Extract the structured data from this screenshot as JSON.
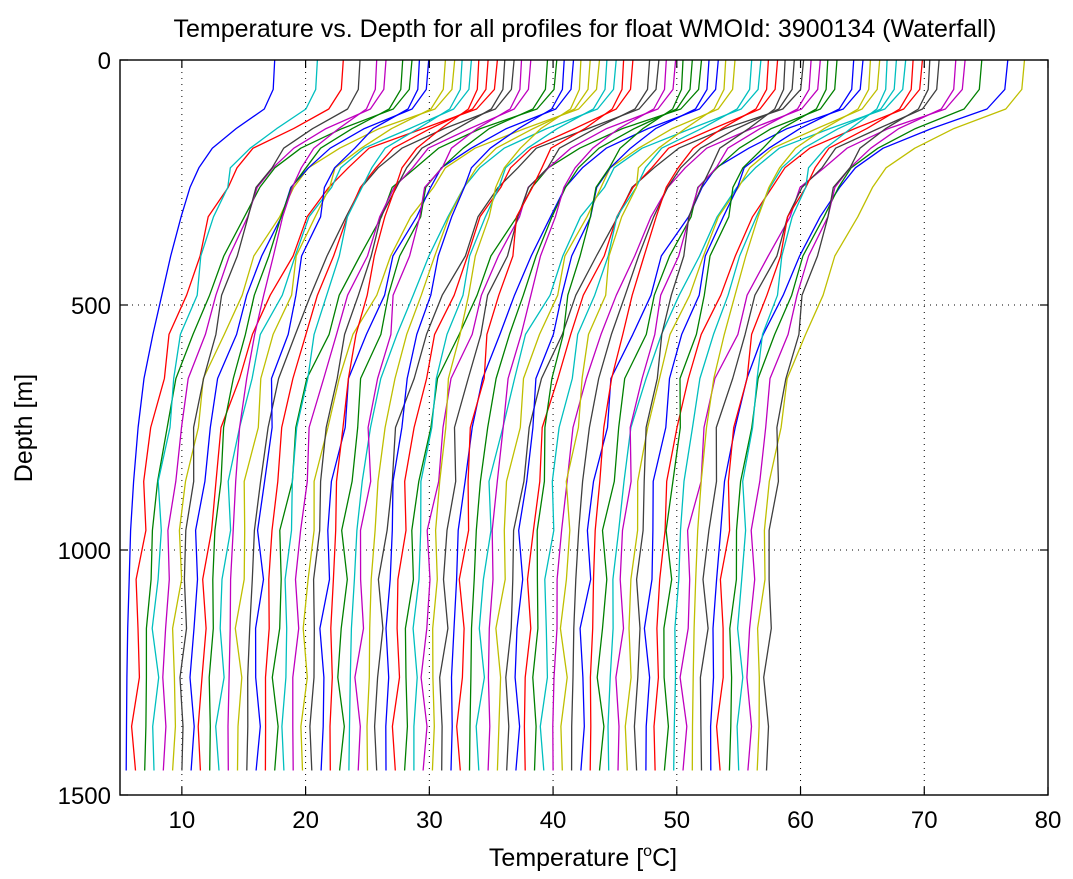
{
  "chart_data": {
    "type": "line",
    "title": "Temperature vs. Depth for all profiles for float WMOId: 3900134 (Waterfall)",
    "xlabel_prefix": "Temperature [",
    "xlabel_sup": "o",
    "xlabel_suffix": "C]",
    "ylabel": "Depth [m]",
    "xlim": [
      5,
      80
    ],
    "ylim": [
      0,
      1500
    ],
    "y_reversed": true,
    "x_ticks": [
      10,
      20,
      30,
      40,
      50,
      60,
      70,
      80
    ],
    "y_ticks": [
      0,
      500,
      1000,
      1500
    ],
    "grid": true,
    "legend": "none",
    "palette": [
      "#0000ff",
      "#ff0000",
      "#008000",
      "#00bfbf",
      "#bf00bf",
      "#bfbf00",
      "#3f3f3f"
    ],
    "profile_depths": [
      0,
      60,
      100,
      140,
      180,
      220,
      260,
      320,
      400,
      480,
      560,
      650,
      750,
      860,
      960,
      1060,
      1160,
      1260,
      1360,
      1450
    ],
    "profile_shape": [
      1.0,
      0.99,
      0.93,
      0.74,
      0.58,
      0.49,
      0.43,
      0.37,
      0.3,
      0.24,
      0.18,
      0.12,
      0.08,
      0.05,
      0.03,
      0.02,
      0.01,
      0.005,
      0.002,
      0.0
    ],
    "series_summary": {
      "count": 70,
      "deep_temperature_start": 5.5,
      "deep_temperature_step": 0.75,
      "surface_offset_min": 12,
      "surface_offset_max": 24,
      "max_depth": 1450
    }
  }
}
